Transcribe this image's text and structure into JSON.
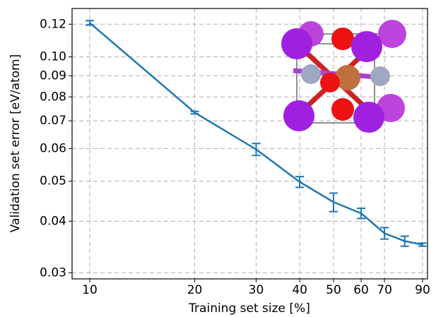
{
  "chart_data": {
    "type": "line",
    "x_label": "Training set size [%]",
    "y_label": "Validation set error [eV/atom]",
    "x": [
      10,
      20,
      30,
      40,
      50,
      60,
      70,
      80,
      90
    ],
    "series": [
      {
        "color": "#1f77b4",
        "values": [
          0.1209,
          0.0733,
          0.0597,
          0.0498,
          0.0445,
          0.0418,
          0.0374,
          0.0358,
          0.0351
        ],
        "errors": [
          0.0015,
          0.0005,
          0.002,
          0.0015,
          0.0023,
          0.0012,
          0.0012,
          0.001,
          0.0003
        ]
      }
    ],
    "xlog": true,
    "ylog": true,
    "xlim": [
      8.9,
      93
    ],
    "ylim": [
      0.029,
      0.131
    ],
    "xticks": [
      10,
      20,
      30,
      40,
      50,
      60,
      70,
      90
    ],
    "yticks": [
      0.12,
      {
        "value": 0.1,
        "label": "0.10"
      },
      0.09,
      0.08,
      0.07,
      0.06,
      0.05,
      0.04,
      0.03
    ],
    "grid": true
  }
}
